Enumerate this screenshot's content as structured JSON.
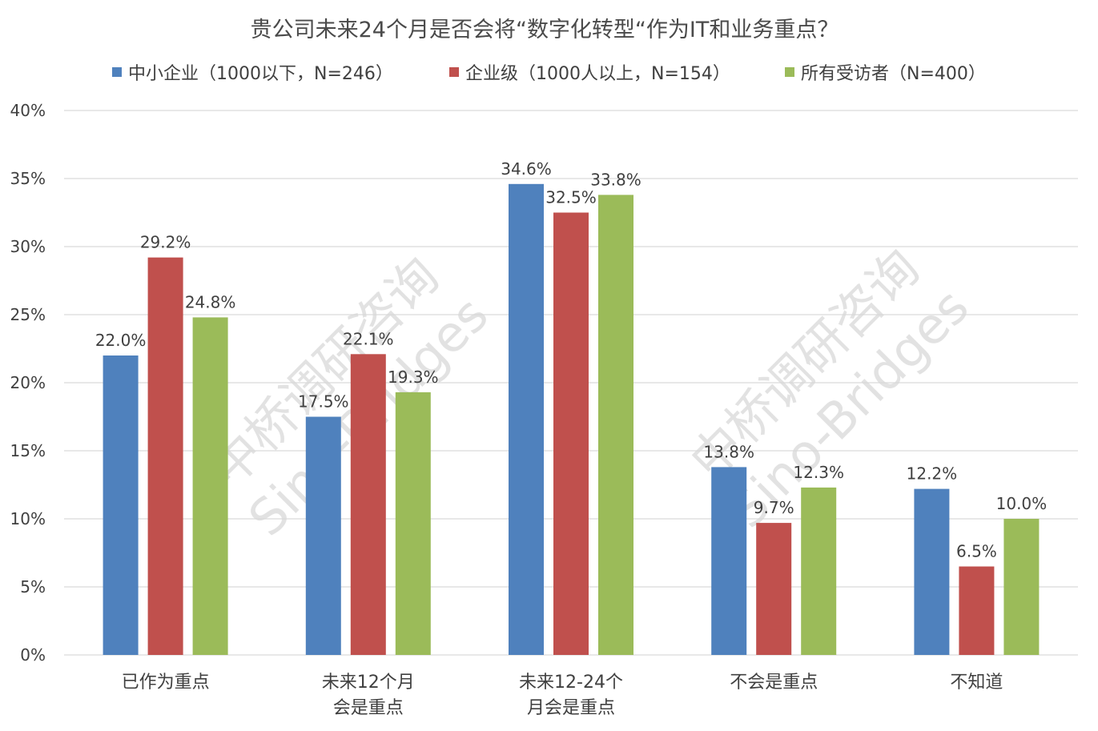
{
  "chart_data": {
    "type": "bar",
    "title": "贵公司未来24个月是否会将“数字化转型“作为IT和业务重点？",
    "categories": [
      [
        "已作为重点"
      ],
      [
        "未来12个月",
        "会是重点"
      ],
      [
        "未来12-24个",
        "月会是重点"
      ],
      [
        "不会是重点"
      ],
      [
        "不知道"
      ]
    ],
    "series": [
      {
        "name": "中小企业（1000以下，N=246）",
        "color": "#4f81bd",
        "values": [
          22.0,
          17.5,
          34.6,
          13.8,
          12.2
        ]
      },
      {
        "name": "企业级（1000人以上，N=154）",
        "color": "#c0504d",
        "values": [
          29.2,
          22.1,
          32.5,
          9.7,
          6.5
        ]
      },
      {
        "name": "所有受访者（N=400）",
        "color": "#9bbb59",
        "values": [
          24.8,
          19.3,
          33.8,
          12.3,
          10.0
        ]
      }
    ],
    "value_format": "percent_1dp",
    "ylim": [
      0,
      40
    ],
    "yticks": [
      0,
      5,
      10,
      15,
      20,
      25,
      30,
      35,
      40
    ],
    "ytick_labels": [
      "0%",
      "5%",
      "10%",
      "15%",
      "20%",
      "25%",
      "30%",
      "35%",
      "40%"
    ],
    "grid": true,
    "gridline_color": "#d9d9d9",
    "legend_position": "top",
    "xlabel": "",
    "ylabel": ""
  },
  "watermarks": [
    [
      "中桥调研咨询",
      "Sino-Bridges"
    ],
    [
      "中桥调研咨询",
      "Sino-Bridges"
    ]
  ]
}
